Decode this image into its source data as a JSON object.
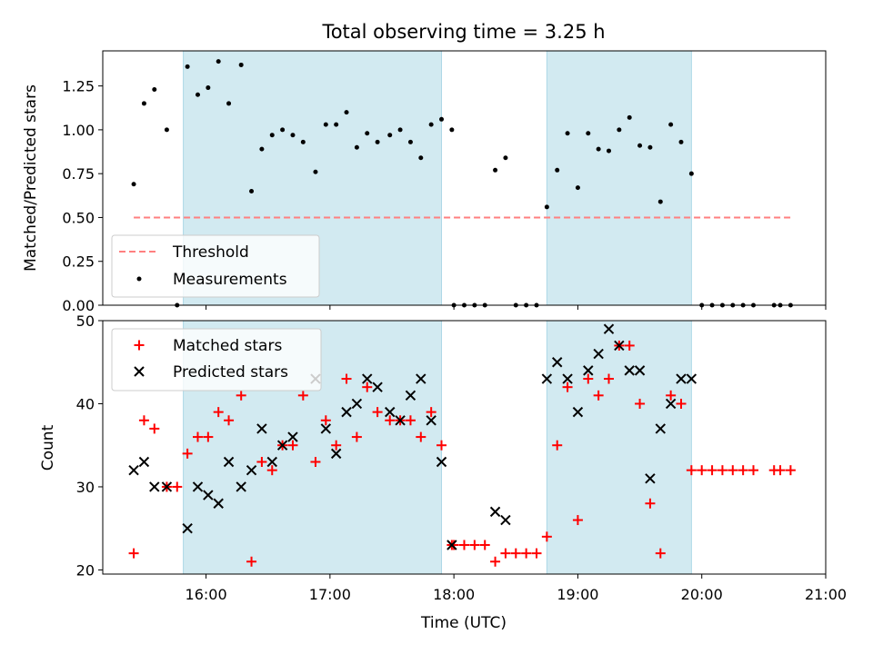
{
  "colors": {
    "band": "#add8e6",
    "threshold": "#ff8080",
    "measurement": "#000000",
    "matched": "#ff0000",
    "predicted": "#000000"
  },
  "chart_data": [
    {
      "type": "scatter",
      "title": "Total observing time = 3.25 h",
      "ylabel": "Matched/Predicted stars",
      "xlabel": "",
      "xlim": [
        "15:10",
        "21:00"
      ],
      "ylim": [
        0,
        1.45
      ],
      "yticks": [
        "0.00",
        "0.25",
        "0.50",
        "0.75",
        "1.00",
        "1.25"
      ],
      "shaded_intervals": [
        [
          "15:49",
          "17:54"
        ],
        [
          "18:45",
          "19:55"
        ]
      ],
      "grid": false,
      "legend": {
        "position": "lower-left",
        "entries": [
          "Threshold",
          "Measurements"
        ]
      },
      "threshold": {
        "name": "Threshold",
        "y": 0.5,
        "x_start": "15:25",
        "x_end": "20:43"
      },
      "measurements": {
        "name": "Measurements",
        "points": [
          [
            "15:25",
            0.69
          ],
          [
            "15:30",
            1.15
          ],
          [
            "15:35",
            1.23
          ],
          [
            "15:41",
            1.0
          ],
          [
            "15:46",
            0.0
          ],
          [
            "15:51",
            1.36
          ],
          [
            "15:56",
            1.2
          ],
          [
            "16:01",
            1.24
          ],
          [
            "16:06",
            1.39
          ],
          [
            "16:11",
            1.15
          ],
          [
            "16:17",
            1.37
          ],
          [
            "16:22",
            0.65
          ],
          [
            "16:27",
            0.89
          ],
          [
            "16:32",
            0.97
          ],
          [
            "16:37",
            1.0
          ],
          [
            "16:42",
            0.97
          ],
          [
            "16:47",
            0.93
          ],
          [
            "16:53",
            0.76
          ],
          [
            "16:58",
            1.03
          ],
          [
            "17:03",
            1.03
          ],
          [
            "17:08",
            1.1
          ],
          [
            "17:13",
            0.9
          ],
          [
            "17:18",
            0.98
          ],
          [
            "17:23",
            0.93
          ],
          [
            "17:29",
            0.97
          ],
          [
            "17:34",
            1.0
          ],
          [
            "17:39",
            0.93
          ],
          [
            "17:44",
            0.84
          ],
          [
            "17:49",
            1.03
          ],
          [
            "17:54",
            1.06
          ],
          [
            "17:59",
            1.0
          ],
          [
            "18:00",
            0.0
          ],
          [
            "18:05",
            0.0
          ],
          [
            "18:10",
            0.0
          ],
          [
            "18:15",
            0.0
          ],
          [
            "18:20",
            0.77
          ],
          [
            "18:25",
            0.84
          ],
          [
            "18:30",
            0.0
          ],
          [
            "18:35",
            0.0
          ],
          [
            "18:40",
            0.0
          ],
          [
            "18:45",
            0.56
          ],
          [
            "18:50",
            0.77
          ],
          [
            "18:55",
            0.98
          ],
          [
            "19:00",
            0.67
          ],
          [
            "19:05",
            0.98
          ],
          [
            "19:10",
            0.89
          ],
          [
            "19:15",
            0.88
          ],
          [
            "19:20",
            1.0
          ],
          [
            "19:25",
            1.07
          ],
          [
            "19:30",
            0.91
          ],
          [
            "19:35",
            0.9
          ],
          [
            "19:40",
            0.59
          ],
          [
            "19:45",
            1.03
          ],
          [
            "19:50",
            0.93
          ],
          [
            "19:55",
            0.75
          ],
          [
            "20:00",
            0.0
          ],
          [
            "20:05",
            0.0
          ],
          [
            "20:10",
            0.0
          ],
          [
            "20:15",
            0.0
          ],
          [
            "20:20",
            0.0
          ],
          [
            "20:25",
            0.0
          ],
          [
            "20:35",
            0.0
          ],
          [
            "20:38",
            0.0
          ],
          [
            "20:43",
            0.0
          ]
        ]
      }
    },
    {
      "type": "scatter",
      "title": "",
      "xlabel": "Time (UTC)",
      "ylabel": "Count",
      "xlim": [
        "15:10",
        "21:00"
      ],
      "xticks": [
        "16:00",
        "17:00",
        "18:00",
        "19:00",
        "20:00",
        "21:00"
      ],
      "ylim": [
        19.5,
        50
      ],
      "yticks": [
        "20",
        "30",
        "40",
        "50"
      ],
      "shaded_intervals": [
        [
          "15:49",
          "17:54"
        ],
        [
          "18:45",
          "19:55"
        ]
      ],
      "grid": false,
      "legend": {
        "position": "top-left",
        "entries": [
          "Matched stars",
          "Predicted stars"
        ]
      },
      "series": [
        {
          "name": "Matched stars",
          "marker": "plus",
          "points": [
            [
              "15:25",
              22
            ],
            [
              "15:30",
              38
            ],
            [
              "15:35",
              37
            ],
            [
              "15:41",
              30
            ],
            [
              "15:46",
              30
            ],
            [
              "15:51",
              34
            ],
            [
              "15:56",
              36
            ],
            [
              "16:01",
              36
            ],
            [
              "16:06",
              39
            ],
            [
              "16:11",
              38
            ],
            [
              "16:17",
              41
            ],
            [
              "16:22",
              21
            ],
            [
              "16:27",
              33
            ],
            [
              "16:32",
              32
            ],
            [
              "16:37",
              35
            ],
            [
              "16:42",
              35
            ],
            [
              "16:47",
              41
            ],
            [
              "16:53",
              33
            ],
            [
              "16:58",
              38
            ],
            [
              "17:03",
              35
            ],
            [
              "17:08",
              43
            ],
            [
              "17:13",
              36
            ],
            [
              "17:18",
              42
            ],
            [
              "17:23",
              39
            ],
            [
              "17:29",
              38
            ],
            [
              "17:34",
              38
            ],
            [
              "17:39",
              38
            ],
            [
              "17:44",
              36
            ],
            [
              "17:49",
              39
            ],
            [
              "17:54",
              35
            ],
            [
              "17:59",
              23
            ],
            [
              "18:00",
              23
            ],
            [
              "18:05",
              23
            ],
            [
              "18:10",
              23
            ],
            [
              "18:15",
              23
            ],
            [
              "18:20",
              21
            ],
            [
              "18:25",
              22
            ],
            [
              "18:30",
              22
            ],
            [
              "18:35",
              22
            ],
            [
              "18:40",
              22
            ],
            [
              "18:45",
              24
            ],
            [
              "18:50",
              35
            ],
            [
              "18:55",
              42
            ],
            [
              "19:00",
              26
            ],
            [
              "19:05",
              43
            ],
            [
              "19:10",
              41
            ],
            [
              "19:15",
              43
            ],
            [
              "19:20",
              47
            ],
            [
              "19:25",
              47
            ],
            [
              "19:30",
              40
            ],
            [
              "19:35",
              28
            ],
            [
              "19:40",
              22
            ],
            [
              "19:45",
              41
            ],
            [
              "19:50",
              40
            ],
            [
              "19:55",
              32
            ],
            [
              "20:00",
              32
            ],
            [
              "20:05",
              32
            ],
            [
              "20:10",
              32
            ],
            [
              "20:15",
              32
            ],
            [
              "20:20",
              32
            ],
            [
              "20:25",
              32
            ],
            [
              "20:35",
              32
            ],
            [
              "20:38",
              32
            ],
            [
              "20:43",
              32
            ]
          ]
        },
        {
          "name": "Predicted stars",
          "marker": "x",
          "points": [
            [
              "15:25",
              32
            ],
            [
              "15:30",
              33
            ],
            [
              "15:35",
              30
            ],
            [
              "15:41",
              30
            ],
            [
              "15:51",
              25
            ],
            [
              "15:56",
              30
            ],
            [
              "16:01",
              29
            ],
            [
              "16:06",
              28
            ],
            [
              "16:11",
              33
            ],
            [
              "16:17",
              30
            ],
            [
              "16:22",
              32
            ],
            [
              "16:27",
              37
            ],
            [
              "16:32",
              33
            ],
            [
              "16:37",
              35
            ],
            [
              "16:42",
              36
            ],
            [
              "16:53",
              43
            ],
            [
              "16:58",
              37
            ],
            [
              "17:03",
              34
            ],
            [
              "17:08",
              39
            ],
            [
              "17:13",
              40
            ],
            [
              "17:18",
              43
            ],
            [
              "17:23",
              42
            ],
            [
              "17:29",
              39
            ],
            [
              "17:34",
              38
            ],
            [
              "17:39",
              41
            ],
            [
              "17:44",
              43
            ],
            [
              "17:49",
              38
            ],
            [
              "17:54",
              33
            ],
            [
              "17:59",
              23
            ],
            [
              "18:20",
              27
            ],
            [
              "18:25",
              26
            ],
            [
              "18:45",
              43
            ],
            [
              "18:50",
              45
            ],
            [
              "18:55",
              43
            ],
            [
              "19:00",
              39
            ],
            [
              "19:05",
              44
            ],
            [
              "19:10",
              46
            ],
            [
              "19:15",
              49
            ],
            [
              "19:20",
              47
            ],
            [
              "19:25",
              44
            ],
            [
              "19:30",
              44
            ],
            [
              "19:35",
              31
            ],
            [
              "19:40",
              37
            ],
            [
              "19:45",
              40
            ],
            [
              "19:50",
              43
            ],
            [
              "19:55",
              43
            ]
          ]
        }
      ]
    }
  ]
}
